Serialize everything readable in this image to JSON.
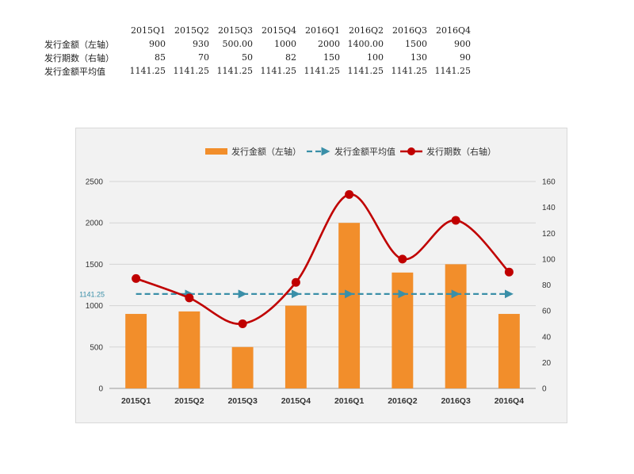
{
  "table": {
    "headers": [
      "2015Q1",
      "2015Q2",
      "2015Q3",
      "2015Q4",
      "2016Q1",
      "2016Q2",
      "2016Q3",
      "2016Q4"
    ],
    "rows": [
      {
        "label": "发行金额（左轴）",
        "cells": [
          "900",
          "930",
          "500.00",
          "1000",
          "2000",
          "1400.00",
          "1500",
          "900"
        ]
      },
      {
        "label": "发行期数（右轴）",
        "cells": [
          "85",
          "70",
          "50",
          "82",
          "150",
          "100",
          "130",
          "90"
        ]
      },
      {
        "label": "发行金额平均值",
        "cells": [
          "1141.25",
          "1141.25",
          "1141.25",
          "1141.25",
          "1141.25",
          "1141.25",
          "1141.25",
          "1141.25"
        ]
      }
    ]
  },
  "chart_data": {
    "type": "bar+line",
    "categories": [
      "2015Q1",
      "2015Q2",
      "2015Q3",
      "2015Q4",
      "2016Q1",
      "2016Q2",
      "2016Q3",
      "2016Q4"
    ],
    "series": [
      {
        "name": "发行金额（左轴）",
        "type": "bar",
        "axis": "left",
        "color": "#f28e2b",
        "values": [
          900,
          930,
          500,
          1000,
          2000,
          1400,
          1500,
          900
        ]
      },
      {
        "name": "发行金额平均值",
        "type": "line-dashed-arrow",
        "axis": "left",
        "color": "#3a8fa8",
        "values": [
          1141.25,
          1141.25,
          1141.25,
          1141.25,
          1141.25,
          1141.25,
          1141.25,
          1141.25
        ]
      },
      {
        "name": "发行期数（右轴）",
        "type": "smooth-line-markers",
        "axis": "right",
        "color": "#c00000",
        "values": [
          85,
          70,
          50,
          82,
          150,
          100,
          130,
          90
        ]
      }
    ],
    "average_label": "1141.25",
    "y_left": {
      "min": 0,
      "max": 2500,
      "ticks": [
        0,
        500,
        1000,
        1500,
        2000,
        2500
      ]
    },
    "y_right": {
      "min": 0,
      "max": 160,
      "ticks": [
        0,
        20,
        40,
        60,
        80,
        100,
        120,
        140,
        160
      ]
    },
    "legend_position": "top",
    "grid": true
  }
}
